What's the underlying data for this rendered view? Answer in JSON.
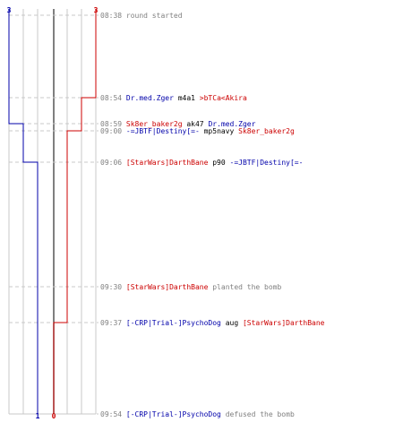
{
  "colors": {
    "team_ct": "#0000aa",
    "team_t": "#cc0000",
    "time": "#808080",
    "text": "#000000",
    "grid": "#c8c8c8",
    "divider": "#555555"
  },
  "counts": {
    "ct_start": "3",
    "t_start": "3",
    "ct_end": "1",
    "t_end": "0"
  },
  "events": [
    {
      "time": "08:38",
      "parts": [
        {
          "text": "round started",
          "role": "action"
        }
      ]
    },
    {
      "time": "08:54",
      "parts": [
        {
          "text": "Dr.med.Zger",
          "role": "ct"
        },
        {
          "text": " m4a1 ",
          "role": "weapon"
        },
        {
          "text": ">bTCa<Akira",
          "role": "t"
        }
      ]
    },
    {
      "time": "08:59",
      "parts": [
        {
          "text": "Sk8er_baker2g",
          "role": "t"
        },
        {
          "text": " ak47 ",
          "role": "weapon"
        },
        {
          "text": "Dr.med.Zger",
          "role": "ct"
        }
      ]
    },
    {
      "time": "09:00",
      "parts": [
        {
          "text": "-=JBTF|Destiny[=-",
          "role": "ct"
        },
        {
          "text": " mp5navy ",
          "role": "weapon"
        },
        {
          "text": "Sk8er_baker2g",
          "role": "t"
        }
      ]
    },
    {
      "time": "09:06",
      "parts": [
        {
          "text": "[StarWars]DarthBane",
          "role": "t"
        },
        {
          "text": " p90 ",
          "role": "weapon"
        },
        {
          "text": "-=JBTF|Destiny[=-",
          "role": "ct"
        }
      ]
    },
    {
      "time": "09:30",
      "parts": [
        {
          "text": "[StarWars]DarthBane",
          "role": "t"
        },
        {
          "text": " planted the bomb",
          "role": "action"
        }
      ]
    },
    {
      "time": "09:37",
      "parts": [
        {
          "text": "[-CRP|Trial-]PsychoDog",
          "role": "ct"
        },
        {
          "text": " aug ",
          "role": "weapon"
        },
        {
          "text": "[StarWars]DarthBane",
          "role": "t"
        }
      ]
    },
    {
      "time": "09:54",
      "parts": [
        {
          "text": "[-CRP|Trial-]PsychoDog",
          "role": "ct"
        },
        {
          "text": " defused the bomb",
          "role": "action"
        }
      ]
    }
  ]
}
